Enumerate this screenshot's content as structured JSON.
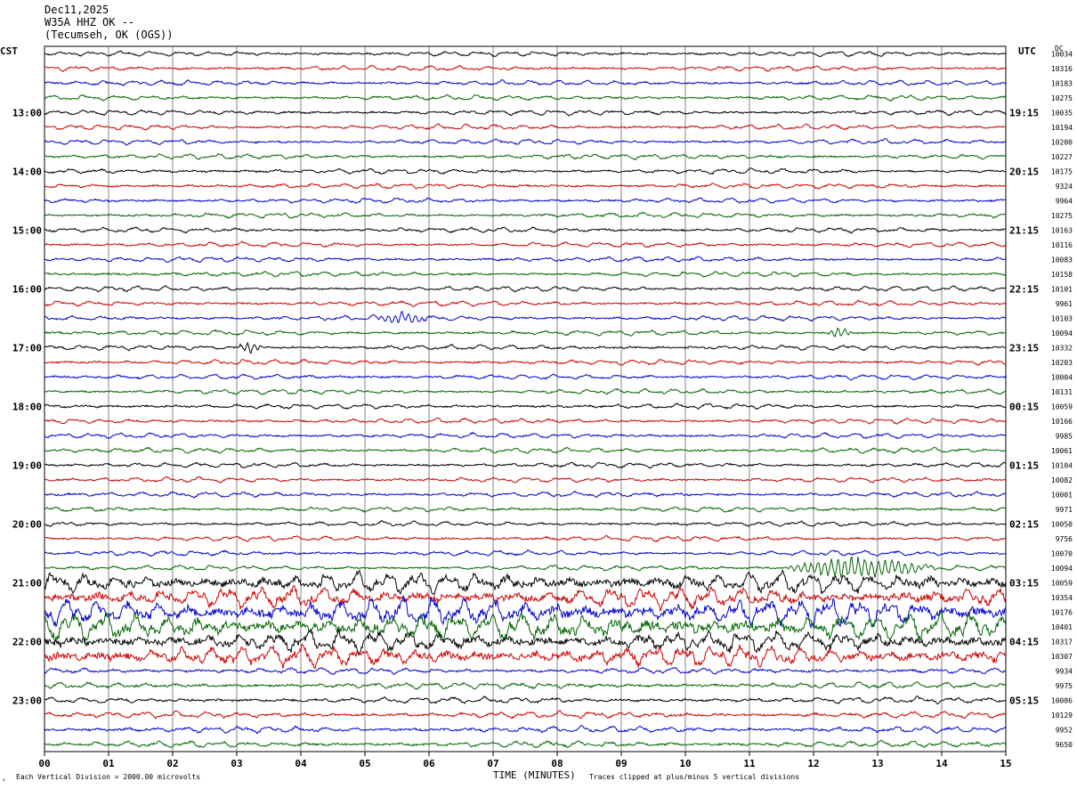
{
  "header": {
    "date": "Dec11,2025",
    "station": "W35A HHZ OK --",
    "location": "(Tecumseh, OK (OGS))"
  },
  "left_zone": "CST",
  "right_zone": "UTC",
  "dc_label": "DC",
  "footer": {
    "scale": "Each Vertical Division = 2000.00 microvolts",
    "clip": "Traces clipped at plus/minus 5 vertical divisions",
    "corner_mark": "‹"
  },
  "chart_data": {
    "type": "line",
    "title": "",
    "xlabel": "TIME (MINUTES)",
    "x_ticks": [
      "00",
      "01",
      "02",
      "03",
      "04",
      "05",
      "06",
      "07",
      "08",
      "09",
      "10",
      "11",
      "12",
      "13",
      "14",
      "15"
    ],
    "xlim": [
      0,
      15
    ],
    "grid": true,
    "trace_minutes": 15,
    "trace_colors": [
      "#000000",
      "#cc0000",
      "#0000cc",
      "#006400"
    ],
    "left_hour_labels": [
      "13:00",
      "14:00",
      "15:00",
      "16:00",
      "17:00",
      "18:00",
      "19:00",
      "20:00",
      "21:00",
      "22:00",
      "23:00"
    ],
    "right_hour_labels": [
      "19:15",
      "20:15",
      "21:15",
      "22:15",
      "23:15",
      "00:15",
      "01:15",
      "02:15",
      "03:15",
      "04:15",
      "05:15"
    ],
    "dc_offsets": [
      10034,
      10316,
      10183,
      10275,
      10035,
      10194,
      10200,
      10227,
      10175,
      9324,
      9964,
      10275,
      10163,
      10116,
      10083,
      10158,
      10101,
      9961,
      10103,
      10094,
      10332,
      10203,
      10004,
      10131,
      10059,
      10166,
      9985,
      10061,
      10104,
      10082,
      10001,
      9971,
      10050,
      9756,
      10070,
      10094,
      10059,
      10354,
      10176,
      10401,
      10317,
      10307,
      9934,
      9975,
      10086,
      10129,
      9952,
      9650
    ],
    "events": [
      {
        "trace": 18,
        "start_min": 5.1,
        "end_min": 6.5
      },
      {
        "trace": 19,
        "start_min": 12.2,
        "end_min": 12.8
      },
      {
        "trace": 20,
        "start_min": 3.0,
        "end_min": 3.6
      },
      {
        "trace": 35,
        "start_min": 11.5,
        "end_min": 15.0
      }
    ]
  }
}
